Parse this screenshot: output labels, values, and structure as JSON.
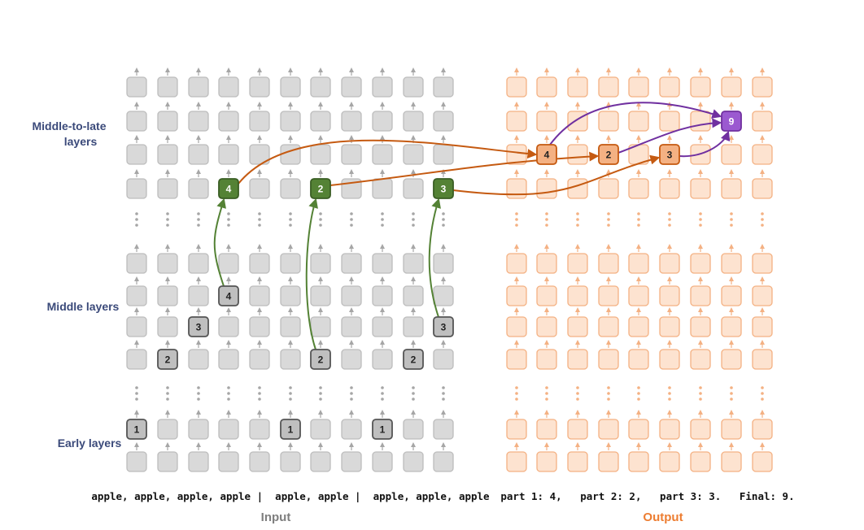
{
  "row_labels": {
    "middle_to_late": [
      "Middle-to-late",
      "layers"
    ],
    "middle": "Middle layers",
    "early": "Early layers"
  },
  "input_tokens": "apple, apple, apple, apple |  apple, apple |  apple, apple, apple",
  "output_tokens": "part 1: 4,   part 2: 2,   part 3: 3.   Final: 9.",
  "input_label": "Input",
  "output_label": "Output",
  "colors": {
    "gray_fill": "#d9d9d9",
    "gray_stroke": "#bdbdbd",
    "dark_gray_fill": "#bfbfbf",
    "dark_gray_stroke": "#555555",
    "green": "#548235",
    "green_stroke": "#3a5e24",
    "orange_fill": "#fde3d0",
    "orange_stroke": "#f4b183",
    "orange_strong": "#f4b183",
    "orange_strong_stroke": "#c55a11",
    "purple": "#9b59d0",
    "purple_line": "#7030a0",
    "arrow_orange": "#c55a11",
    "arrow_green": "#548235",
    "input_label": "#7f7f7f",
    "output_label": "#ed7d31"
  },
  "input_highlights": [
    {
      "col": 0,
      "row": 8,
      "label": "1",
      "kind": "dark"
    },
    {
      "col": 1,
      "row": 7,
      "label": "2",
      "kind": "dark"
    },
    {
      "col": 2,
      "row": 6,
      "label": "3",
      "kind": "dark"
    },
    {
      "col": 3,
      "row": 5,
      "label": "4",
      "kind": "dark"
    },
    {
      "col": 3,
      "row": 3,
      "label": "4",
      "kind": "green"
    },
    {
      "col": 5,
      "row": 8,
      "label": "1",
      "kind": "dark"
    },
    {
      "col": 6,
      "row": 7,
      "label": "2",
      "kind": "dark"
    },
    {
      "col": 6,
      "row": 3,
      "label": "2",
      "kind": "green"
    },
    {
      "col": 8,
      "row": 8,
      "label": "1",
      "kind": "dark"
    },
    {
      "col": 9,
      "row": 7,
      "label": "2",
      "kind": "dark"
    },
    {
      "col": 10,
      "row": 6,
      "label": "3",
      "kind": "dark"
    },
    {
      "col": 10,
      "row": 3,
      "label": "3",
      "kind": "green"
    }
  ],
  "output_highlights": [
    {
      "col": 1,
      "row": 2,
      "label": "4",
      "kind": "orange"
    },
    {
      "col": 3,
      "row": 2,
      "label": "2",
      "kind": "orange"
    },
    {
      "col": 5,
      "row": 2,
      "label": "3",
      "kind": "orange"
    },
    {
      "col": 7,
      "row": 1,
      "label": "9",
      "kind": "purple"
    }
  ]
}
